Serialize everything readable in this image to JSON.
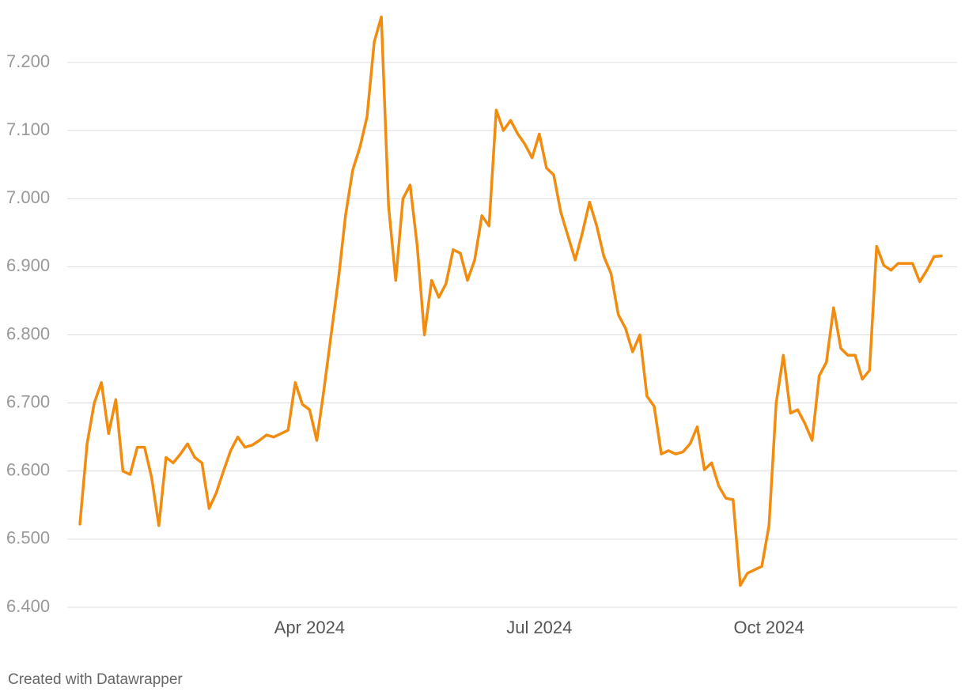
{
  "chart_data": {
    "type": "line",
    "categories": [
      null,
      null,
      null,
      null,
      null,
      null,
      null,
      null,
      null,
      null,
      null,
      null,
      null,
      null,
      null,
      null,
      null,
      null,
      null,
      null,
      null,
      null,
      null,
      null,
      null,
      null,
      null,
      null,
      null,
      null,
      null,
      null,
      "Apr 2024",
      null,
      null,
      null,
      null,
      null,
      null,
      null,
      null,
      null,
      null,
      null,
      null,
      null,
      null,
      null,
      null,
      null,
      null,
      null,
      null,
      null,
      null,
      null,
      null,
      null,
      null,
      null,
      null,
      null,
      null,
      null,
      "Jul 2024",
      null,
      null,
      null,
      null,
      null,
      null,
      null,
      null,
      null,
      null,
      null,
      null,
      null,
      null,
      null,
      null,
      null,
      null,
      null,
      null,
      null,
      null,
      null,
      null,
      null,
      null,
      null,
      null,
      null,
      null,
      null,
      "Oct 2024",
      null,
      null,
      null,
      null,
      null,
      null,
      null,
      null,
      null,
      null,
      null,
      null,
      null,
      null,
      null,
      null,
      null,
      null,
      null,
      null,
      null,
      null,
      null,
      null
    ],
    "series": [
      {
        "name": null,
        "color": "#f28c0f",
        "values": [
          6.522,
          6.64,
          6.7,
          6.73,
          6.655,
          6.705,
          6.6,
          6.595,
          6.635,
          6.635,
          6.59,
          6.52,
          6.62,
          6.612,
          6.625,
          6.64,
          6.62,
          6.612,
          6.545,
          6.568,
          6.6,
          6.63,
          6.65,
          6.635,
          6.638,
          6.645,
          6.653,
          6.65,
          6.655,
          6.66,
          6.73,
          6.698,
          6.69,
          6.645,
          6.72,
          6.8,
          6.88,
          6.975,
          7.042,
          7.075,
          7.12,
          7.23,
          7.267,
          6.99,
          6.88,
          7.0,
          7.02,
          6.93,
          6.8,
          6.88,
          6.855,
          6.875,
          6.925,
          6.92,
          6.88,
          6.91,
          6.975,
          6.96,
          7.13,
          7.1,
          7.115,
          7.095,
          7.08,
          7.06,
          7.095,
          7.045,
          7.035,
          6.98,
          6.945,
          6.91,
          6.95,
          6.995,
          6.96,
          6.915,
          6.89,
          6.83,
          6.81,
          6.775,
          6.8,
          6.71,
          6.695,
          6.625,
          6.63,
          6.625,
          6.628,
          6.64,
          6.665,
          6.602,
          6.612,
          6.578,
          6.56,
          6.558,
          6.432,
          6.45,
          6.455,
          6.46,
          6.52,
          6.7,
          6.77,
          6.685,
          6.69,
          6.67,
          6.645,
          6.74,
          6.76,
          6.84,
          6.78,
          6.77,
          6.77,
          6.735,
          6.748,
          6.93,
          6.902,
          6.895,
          6.905,
          6.905,
          6.905,
          6.878,
          6.895,
          6.915,
          6.916
        ]
      }
    ],
    "ylim": [
      6.4,
      7.27
    ],
    "yticks": [
      {
        "value": 6.4,
        "label": "6.400"
      },
      {
        "value": 6.5,
        "label": "6.500"
      },
      {
        "value": 6.6,
        "label": "6.600"
      },
      {
        "value": 6.7,
        "label": "6.700"
      },
      {
        "value": 6.8,
        "label": "6.800"
      },
      {
        "value": 6.9,
        "label": "6.900"
      },
      {
        "value": 7.0,
        "label": "7.000"
      },
      {
        "value": 7.1,
        "label": "7.100"
      },
      {
        "value": 7.2,
        "label": "7.200"
      }
    ],
    "grid": true,
    "credit": "Created with Datawrapper"
  }
}
